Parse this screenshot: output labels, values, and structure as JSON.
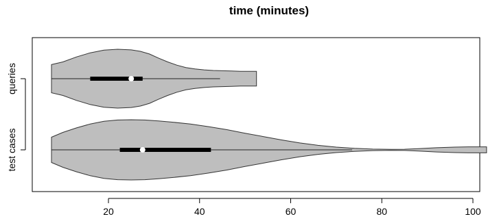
{
  "chart_data": {
    "type": "violin",
    "title": "time (minutes)",
    "xlabel": "",
    "ylabel": "",
    "xlim": [
      6,
      103
    ],
    "xticks": [
      20,
      40,
      60,
      80,
      100
    ],
    "categories": [
      "queries",
      "test cases"
    ],
    "grid": false,
    "colors": {
      "fill": "#bebebe",
      "outline": "#333333",
      "median": "#ffffff"
    },
    "series": [
      {
        "name": "queries",
        "min": 7.5,
        "q1": 16,
        "median": 25,
        "q3": 27.5,
        "max": 44.5,
        "extent": [
          7.5,
          52.5
        ],
        "density": [
          [
            7.5,
            0.48
          ],
          [
            10,
            0.57
          ],
          [
            13,
            0.74
          ],
          [
            16,
            0.88
          ],
          [
            19,
            0.97
          ],
          [
            22,
            1.0
          ],
          [
            25,
            0.98
          ],
          [
            27,
            0.93
          ],
          [
            29,
            0.84
          ],
          [
            31,
            0.7
          ],
          [
            33,
            0.57
          ],
          [
            35,
            0.46
          ],
          [
            37,
            0.38
          ],
          [
            39,
            0.33
          ],
          [
            41,
            0.3
          ],
          [
            43,
            0.28
          ],
          [
            45,
            0.27
          ],
          [
            47,
            0.26
          ],
          [
            49,
            0.25
          ],
          [
            51,
            0.25
          ],
          [
            52.5,
            0.25
          ]
        ]
      },
      {
        "name": "test cases",
        "min": 7.5,
        "q1": 22.5,
        "median": 27.5,
        "q3": 42.5,
        "max": 73.5,
        "extent": [
          7.5,
          103
        ],
        "density": [
          [
            7.5,
            0.42
          ],
          [
            10,
            0.58
          ],
          [
            13,
            0.73
          ],
          [
            16,
            0.86
          ],
          [
            19,
            0.95
          ],
          [
            22,
            0.99
          ],
          [
            25,
            1.0
          ],
          [
            28,
            0.99
          ],
          [
            31,
            0.96
          ],
          [
            34,
            0.92
          ],
          [
            38,
            0.86
          ],
          [
            42,
            0.77
          ],
          [
            46,
            0.67
          ],
          [
            50,
            0.55
          ],
          [
            54,
            0.44
          ],
          [
            58,
            0.33
          ],
          [
            62,
            0.23
          ],
          [
            66,
            0.15
          ],
          [
            70,
            0.09
          ],
          [
            74,
            0.05
          ],
          [
            78,
            0.025
          ],
          [
            82,
            0.015
          ],
          [
            85,
            0.02
          ],
          [
            88,
            0.04
          ],
          [
            92,
            0.07
          ],
          [
            96,
            0.09
          ],
          [
            99,
            0.1
          ],
          [
            103,
            0.1
          ]
        ]
      }
    ]
  }
}
